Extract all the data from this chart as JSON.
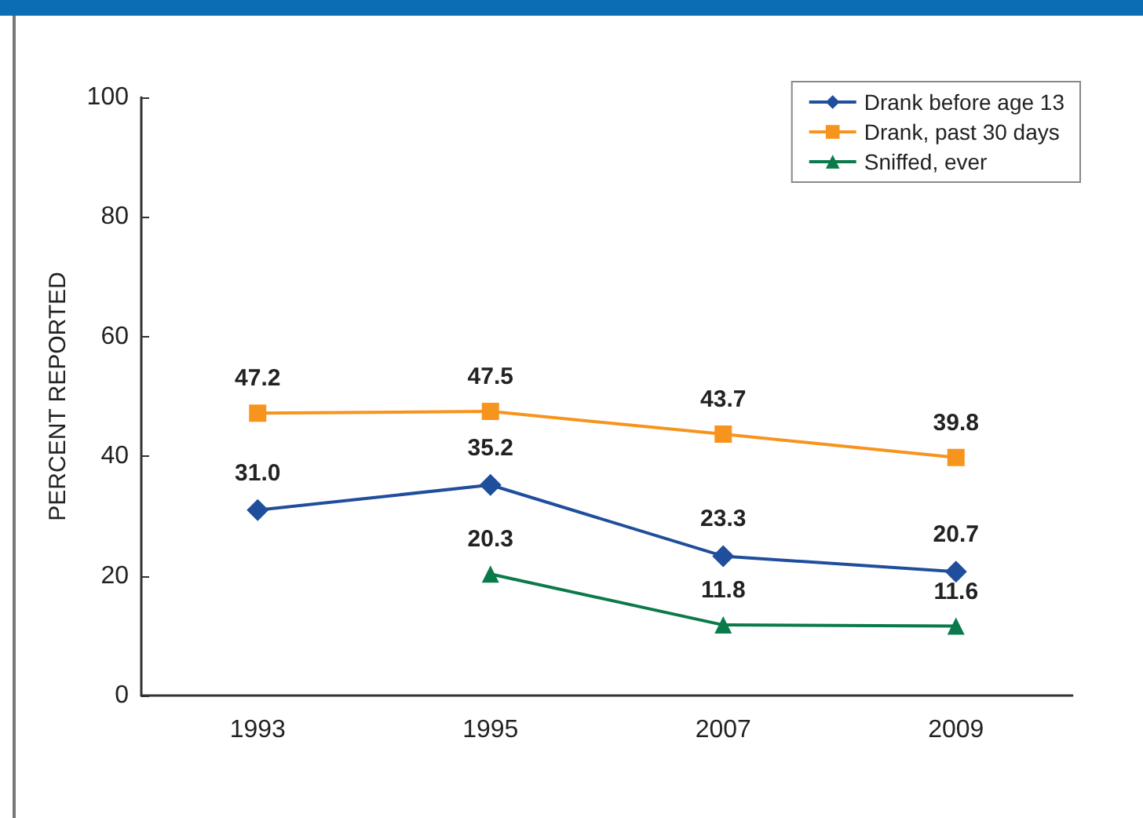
{
  "chart_data": {
    "type": "line",
    "ylabel": "PERCENT REPORTED",
    "categories": [
      "1993",
      "1995",
      "2007",
      "2009"
    ],
    "series": [
      {
        "name": "Drank before age 13",
        "color": "#1f4e9c",
        "marker": "diamond",
        "values": [
          31.0,
          35.2,
          23.3,
          20.7
        ],
        "value_labels": [
          "31.0",
          "35.2",
          "23.3",
          "20.7"
        ]
      },
      {
        "name": "Drank, past 30 days",
        "color": "#f7941d",
        "marker": "square",
        "values": [
          47.2,
          47.5,
          43.7,
          39.8
        ],
        "value_labels": [
          "47.2",
          "47.5",
          "43.7",
          "39.8"
        ]
      },
      {
        "name": "Sniffed, ever",
        "color": "#0b7a4a",
        "marker": "triangle",
        "values": [
          null,
          20.3,
          11.8,
          11.6
        ],
        "value_labels": [
          null,
          "20.3",
          "11.8",
          "11.6"
        ]
      }
    ],
    "ylim": [
      0,
      100
    ],
    "yticks": [
      0,
      20,
      40,
      60,
      80,
      100
    ],
    "grid": false,
    "legend": "top right",
    "line_style": "solid"
  }
}
